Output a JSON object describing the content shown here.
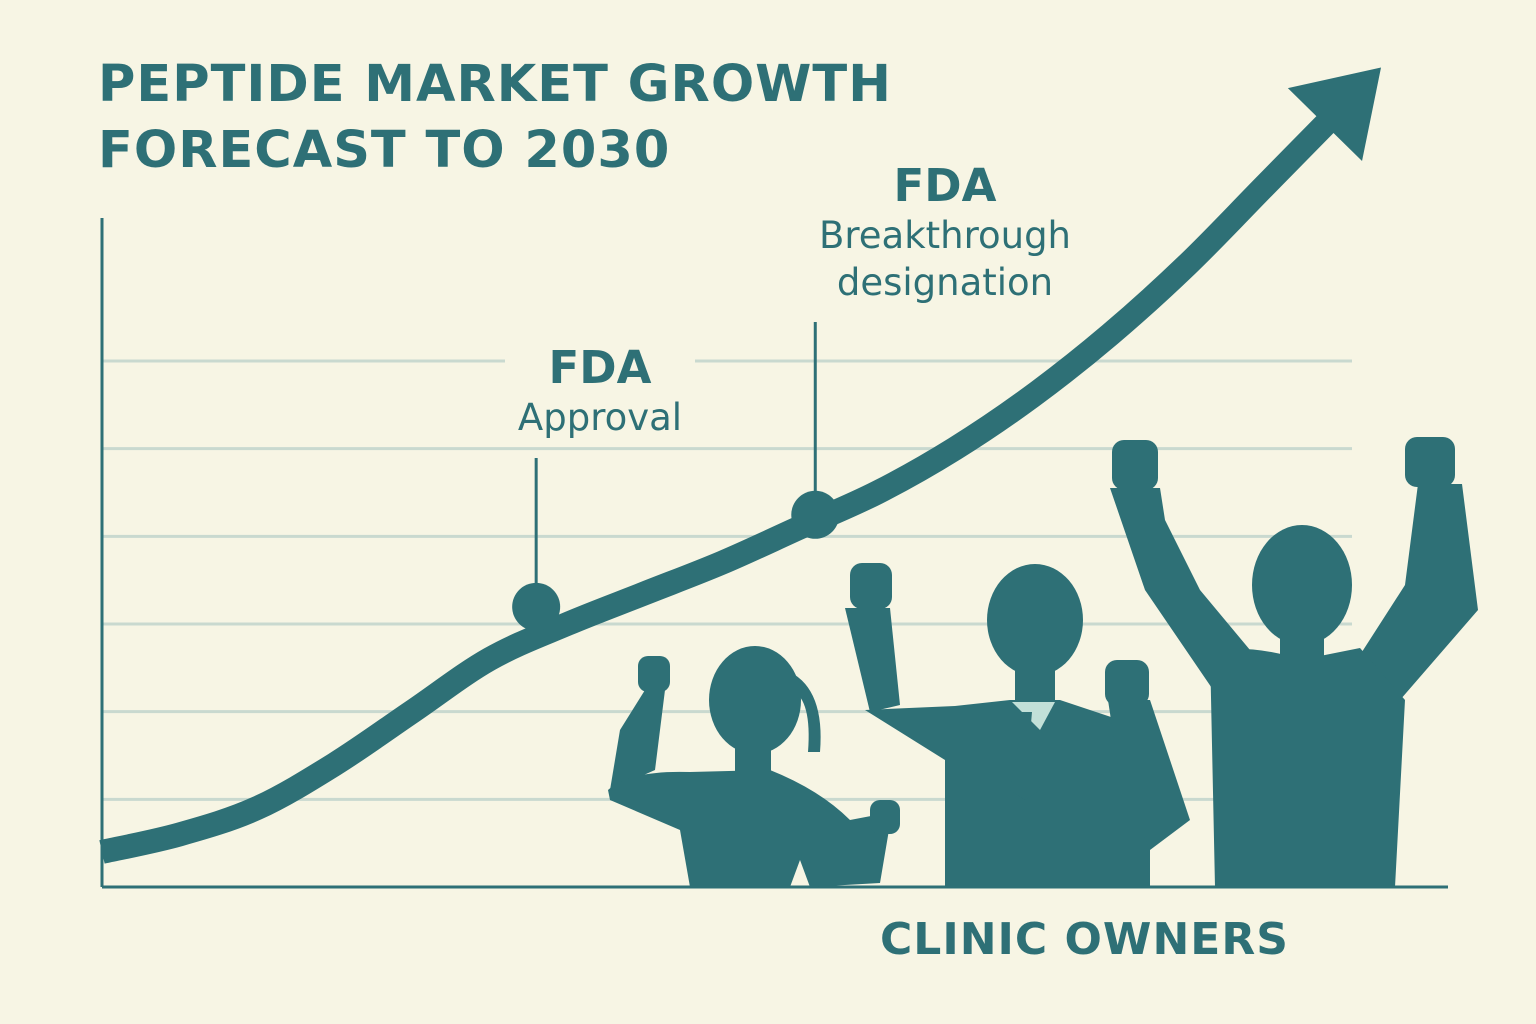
{
  "colors": {
    "background": "#f7f5e4",
    "accent": "#2e7076",
    "gridline": "#c9d9cf",
    "shirt": "#c2e0d8"
  },
  "chart_data": {
    "type": "line",
    "title": "PEPTIDE MARKET GROWTH FORECAST TO 2030",
    "title_lines": [
      "PEPTIDE MARKET GROWTH",
      "FORECAST TO 2030"
    ],
    "xlabel": "",
    "ylabel": "",
    "grid": true,
    "series": [
      {
        "x": [
          0,
          0.5,
          1,
          1.5,
          2,
          2.5,
          3,
          3.5,
          4,
          4.5,
          5,
          5.5,
          6,
          6.5,
          7,
          7.5,
          8
        ],
        "values": [
          0.4,
          0.6,
          0.9,
          1.4,
          2.0,
          2.6,
          3.0,
          3.35,
          3.7,
          4.1,
          4.5,
          5.0,
          5.6,
          6.3,
          7.1,
          8.0,
          8.9
        ]
      }
    ],
    "xlim": [
      0,
      8.5
    ],
    "ylim": [
      0,
      9
    ],
    "gridlines": [
      1,
      2,
      3,
      4,
      5,
      6
    ],
    "annotations": [
      {
        "label_big": "FDA",
        "label_small": [
          "Approval"
        ],
        "x": 2.8,
        "y": 3.15
      },
      {
        "label_big": "FDA",
        "label_small": [
          "Breakthrough",
          "designation"
        ],
        "x": 4.6,
        "y": 4.2
      }
    ]
  },
  "footer": {
    "label": "CLINIC OWNERS"
  },
  "illustration": {
    "figure_count": 3
  }
}
